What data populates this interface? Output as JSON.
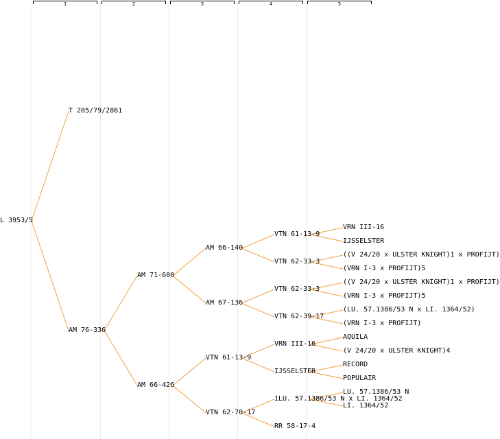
{
  "colors": {
    "edge": "#f0a040",
    "text": "#000000",
    "guide": "#ececec"
  },
  "columns": [
    "1",
    "2",
    "3",
    "4",
    "5"
  ],
  "tree": {
    "label": "L 3953/5",
    "children": [
      {
        "label": "T 205/79/2861"
      },
      {
        "label": "AM 76-336",
        "children": [
          {
            "label": "AM 71-600",
            "children": [
              {
                "label": "AM 66-140",
                "children": [
                  {
                    "label": "VTN 61-13-9",
                    "children": [
                      {
                        "label": "VRN III-16"
                      },
                      {
                        "label": "IJSSELSTER"
                      }
                    ]
                  },
                  {
                    "label": "VTN 62-33-3",
                    "children": [
                      {
                        "label": "((V 24/20 x ULSTER KNIGHT)1 x PROFIJT)"
                      },
                      {
                        "label": "(VRN I-3 x PROFIJT)5"
                      }
                    ]
                  }
                ]
              },
              {
                "label": "AM 67-136",
                "children": [
                  {
                    "label": "VTN 62-33-3",
                    "children": [
                      {
                        "label": "((V 24/20 x ULSTER KNIGHT)1 x PROFIJT)"
                      },
                      {
                        "label": "(VRN I-3 x PROFIJT)5"
                      }
                    ]
                  },
                  {
                    "label": "VTN 62-39-17",
                    "children": [
                      {
                        "label": "(LU. 57.1386/53 N x LI. 1364/52)"
                      },
                      {
                        "label": "(VRN I-3 x PROFIJT)"
                      }
                    ]
                  }
                ]
              }
            ]
          },
          {
            "label": "AM 66-426",
            "children": [
              {
                "label": "VTN 61-13-9",
                "children": [
                  {
                    "label": "VRN III-16",
                    "children": [
                      {
                        "label": "AQUILA"
                      },
                      {
                        "label": "(V 24/20 x ULSTER KNIGHT)4"
                      }
                    ]
                  },
                  {
                    "label": "IJSSELSTER",
                    "children": [
                      {
                        "label": "RECORD"
                      },
                      {
                        "label": "POPULAIR"
                      }
                    ]
                  }
                ]
              },
              {
                "label": "VTN 62-70-17",
                "children": [
                  {
                    "label": "1LU. 57.1386/53 N x LI. 1364/52",
                    "children": [
                      {
                        "label": "LU. 57.1386/53 N"
                      },
                      {
                        "label": "LI. 1364/52"
                      }
                    ]
                  },
                  {
                    "label": "RR 58-17-4"
                  }
                ]
              }
            ]
          }
        ]
      }
    ]
  }
}
